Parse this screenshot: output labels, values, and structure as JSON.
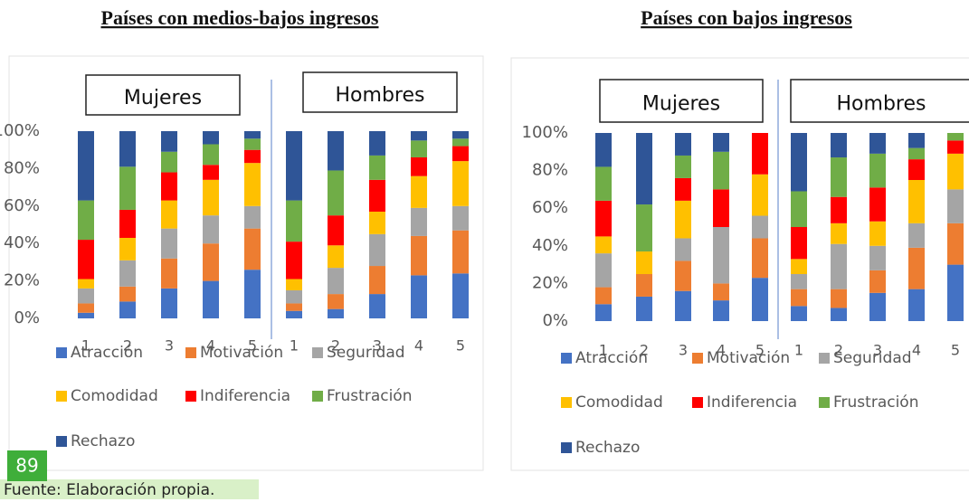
{
  "chart_data": [
    {
      "type": "bar",
      "stacked": true,
      "title": "Países con medios-bajos ingresos",
      "annotations": [
        "Mujeres",
        "Hombres"
      ],
      "categories": [
        "1",
        "2",
        "3",
        "4",
        "5",
        "1",
        "2",
        "3",
        "4",
        "5"
      ],
      "ylim": [
        0,
        100
      ],
      "yticks": [
        {
          "value": 0,
          "label": "0%"
        },
        {
          "value": 20,
          "label": "20%"
        },
        {
          "value": 40,
          "label": "40%"
        },
        {
          "value": 60,
          "label": "60%"
        },
        {
          "value": 80,
          "label": "80%"
        },
        {
          "value": 100,
          "label": "100%"
        }
      ],
      "grid": false,
      "series": [
        {
          "name": "Atracción",
          "color": "#4472c4",
          "values": [
            3,
            9,
            16,
            20,
            26,
            4,
            5,
            13,
            23,
            24
          ]
        },
        {
          "name": "Motivación",
          "color": "#ed7d31",
          "values": [
            5,
            8,
            16,
            20,
            22,
            4,
            8,
            15,
            21,
            23
          ]
        },
        {
          "name": "Seguridad",
          "color": "#a5a5a5",
          "values": [
            8,
            14,
            16,
            15,
            12,
            7,
            14,
            17,
            15,
            13
          ]
        },
        {
          "name": "Comodidad",
          "color": "#ffc000",
          "values": [
            5,
            12,
            15,
            19,
            23,
            6,
            12,
            12,
            17,
            24
          ]
        },
        {
          "name": "Indiferencia",
          "color": "#ff0000",
          "values": [
            21,
            15,
            15,
            8,
            7,
            20,
            16,
            17,
            10,
            8
          ]
        },
        {
          "name": "Frustración",
          "color": "#70ad47",
          "values": [
            21,
            23,
            11,
            11,
            6,
            22,
            24,
            13,
            9,
            4
          ]
        },
        {
          "name": "Rechazo",
          "color": "#2f5597",
          "values": [
            37,
            19,
            11,
            7,
            4,
            37,
            21,
            13,
            5,
            4
          ]
        }
      ]
    },
    {
      "type": "bar",
      "stacked": true,
      "title": "Países con bajos ingresos",
      "annotations": [
        "Mujeres",
        "Hombres"
      ],
      "categories": [
        "1",
        "2",
        "3",
        "4",
        "5",
        "1",
        "2",
        "3",
        "4",
        "5"
      ],
      "ylim": [
        0,
        100
      ],
      "yticks": [
        {
          "value": 0,
          "label": "0%"
        },
        {
          "value": 20,
          "label": "20%"
        },
        {
          "value": 40,
          "label": "40%"
        },
        {
          "value": 60,
          "label": "60%"
        },
        {
          "value": 80,
          "label": "80%"
        },
        {
          "value": 100,
          "label": "100%"
        }
      ],
      "grid": false,
      "series": [
        {
          "name": "Atracción",
          "color": "#4472c4",
          "values": [
            9,
            13,
            16,
            11,
            23,
            8,
            7,
            15,
            17,
            30
          ]
        },
        {
          "name": "Motivación",
          "color": "#ed7d31",
          "values": [
            9,
            12,
            16,
            9,
            21,
            9,
            10,
            12,
            22,
            22
          ]
        },
        {
          "name": "Seguridad",
          "color": "#a5a5a5",
          "values": [
            18,
            0,
            12,
            30,
            12,
            8,
            24,
            13,
            13,
            18
          ]
        },
        {
          "name": "Comodidad",
          "color": "#ffc000",
          "values": [
            9,
            12,
            20,
            0,
            22,
            8,
            11,
            13,
            23,
            19
          ]
        },
        {
          "name": "Indiferencia",
          "color": "#ff0000",
          "values": [
            19,
            0,
            12,
            20,
            22,
            17,
            14,
            18,
            11,
            7
          ]
        },
        {
          "name": "Frustración",
          "color": "#70ad47",
          "values": [
            18,
            25,
            12,
            20,
            0,
            19,
            21,
            18,
            6,
            4
          ]
        },
        {
          "name": "Rechazo",
          "color": "#2f5597",
          "values": [
            18,
            38,
            12,
            10,
            0,
            31,
            13,
            11,
            8,
            0
          ]
        }
      ]
    }
  ],
  "badge": "89",
  "source": "Fuente: Elaboración propia."
}
